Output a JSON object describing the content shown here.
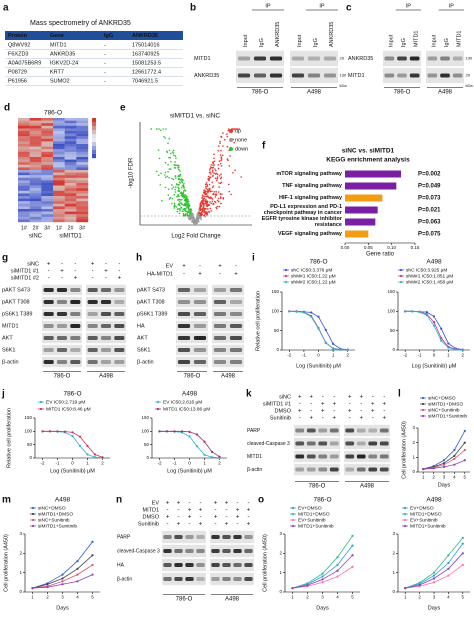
{
  "panel_labels": [
    "a",
    "b",
    "c",
    "d",
    "e",
    "f",
    "g",
    "h",
    "i",
    "j",
    "k",
    "l",
    "m",
    "n",
    "o"
  ],
  "a": {
    "title": "Mass spectrometry of ANKRD35",
    "header": [
      "Protein",
      "Gene",
      "IgG",
      "ANKRD35"
    ],
    "rows": [
      [
        "Q8WV92",
        "MITD1",
        "-",
        "175014016"
      ],
      [
        "F6XZD3",
        "ANKRD35",
        "-",
        "163740925"
      ],
      [
        "A0A075B6R9",
        "IGKV2D-24",
        "-",
        "15081253.5"
      ],
      [
        "P08729",
        "KRT7",
        "-",
        "12661772.4"
      ],
      [
        "P61956",
        "SUMO2",
        "-",
        "7046921.5"
      ]
    ]
  },
  "b": {
    "ip": "IP",
    "lanes": [
      [
        "Input",
        "IgG",
        "ANKRD35"
      ],
      [
        "Input",
        "IgG",
        "ANKRD35"
      ]
    ],
    "rows": [
      "MITD1",
      "ANKRD35"
    ],
    "markers": [
      "29",
      "130"
    ],
    "marker_unit": "kDa",
    "cell_lines": [
      "786-O",
      "A498"
    ]
  },
  "c": {
    "ip": "IP",
    "lanes": [
      [
        "Input",
        "IgG",
        "MITD1"
      ],
      [
        "Input",
        "IgG",
        "MITD1"
      ]
    ],
    "rows": [
      "ANKRD35",
      "MITD1"
    ],
    "markers": [
      "130",
      "29"
    ],
    "marker_unit": "kDa",
    "cell_lines": [
      "786-O",
      "A498"
    ]
  },
  "d": {
    "title": "786-O",
    "replicates": [
      "1#",
      "2#",
      "3#"
    ],
    "groups": [
      "siNC",
      "siMITD1"
    ]
  },
  "e": {
    "title": "siMITD1 vs. siNC",
    "legend": [
      "up",
      "none",
      "down"
    ],
    "legend_colors": [
      "#e8302a",
      "#9a9a9a",
      "#2cc22c"
    ],
    "ylabel": "-log10 FDR",
    "xlabel": "Log2 Fold Change"
  },
  "g": {
    "treatments": [
      {
        "label": "siNC",
        "signs": [
          "+",
          "-",
          "-",
          "+",
          "-",
          "-"
        ]
      },
      {
        "label": "siMITD1 #1",
        "signs": [
          "-",
          "+",
          "-",
          "-",
          "+",
          "-"
        ]
      },
      {
        "label": "siMITD1 #2",
        "signs": [
          "-",
          "-",
          "+",
          "-",
          "-",
          "+"
        ]
      }
    ],
    "rows": [
      "pAKT S473",
      "pAKT T308",
      "pS6K1 T389",
      "MITD1",
      "AKT",
      "S6K1",
      "β-actin"
    ],
    "cell_lines": [
      "786-O",
      "A498"
    ]
  },
  "h": {
    "treatments": [
      {
        "label": "EV",
        "signs": [
          "+",
          "-",
          "+",
          "-"
        ]
      },
      {
        "label": "HA-MITD1",
        "signs": [
          "-",
          "+",
          "-",
          "+"
        ]
      }
    ],
    "rows": [
      "pAKT S473",
      "pAKT T308",
      "pS6K1 T389",
      "HA",
      "AKT",
      "S6K1",
      "β-actin"
    ],
    "cell_lines": [
      "786-O",
      "A498"
    ]
  },
  "k": {
    "treatments": [
      {
        "label": "siNC",
        "signs": [
          "+",
          "+",
          "-",
          "-",
          "+",
          "+",
          "-",
          "-"
        ]
      },
      {
        "label": "siMITD1 #1",
        "signs": [
          "-",
          "-",
          "+",
          "+",
          "-",
          "-",
          "+",
          "+"
        ]
      },
      {
        "label": "DMSO",
        "signs": [
          "+",
          "-",
          "+",
          "-",
          "+",
          "-",
          "+",
          "-"
        ]
      },
      {
        "label": "Sunitinib",
        "signs": [
          "-",
          "+",
          "-",
          "+",
          "-",
          "+",
          "-",
          "+"
        ]
      }
    ],
    "rows": [
      "PARP",
      "cleaved-Caspase 3",
      "MITD1",
      "β-actin"
    ],
    "cell_lines": [
      "786-O",
      "A498"
    ]
  },
  "n": {
    "treatments": [
      {
        "label": "EV",
        "signs": [
          "+",
          "+",
          "-",
          "-",
          "+",
          "+",
          "-",
          "-"
        ]
      },
      {
        "label": "MITD1",
        "signs": [
          "-",
          "-",
          "+",
          "+",
          "-",
          "-",
          "+",
          "+"
        ]
      },
      {
        "label": "DMSO",
        "signs": [
          "+",
          "-",
          "+",
          "-",
          "+",
          "-",
          "+",
          "-"
        ]
      },
      {
        "label": "Sunitinib",
        "signs": [
          "-",
          "+",
          "-",
          "+",
          "-",
          "+",
          "-",
          "+"
        ]
      }
    ],
    "rows": [
      "PARP",
      "cleaved-Caspase 3",
      "HA",
      "β-actin"
    ],
    "cell_lines": [
      "786-O",
      "A498"
    ]
  },
  "chart_data": [
    {
      "type": "barh",
      "title": "siNC vs. siMITD1",
      "subtitle": "KEGG enrichment analysis",
      "categories": [
        "mTOR signaling pathway",
        "TNF signaling pathway",
        "HIF-1 signaling pathway",
        "PD-L1 expression and PD-1 checkpoint pathway in cancer",
        "EGFR tyrosine kinase inhibitor resistance",
        "VEGF signaling pathway"
      ],
      "values": [
        0.12,
        0.11,
        0.08,
        0.07,
        0.065,
        0.05
      ],
      "colors": [
        "#7b1fa2",
        "#7b1fa2",
        "#f39c12",
        "#7b1fa2",
        "#7b1fa2",
        "#f39c12"
      ],
      "annotations": [
        "P=0.002",
        "P=0.049",
        "P=0.073",
        "P=0.021",
        "P=0.063",
        "P=0.075"
      ],
      "xlim": [
        0,
        0.15
      ],
      "xticks": [
        {
          "value": 0,
          "label": "0.00"
        },
        {
          "value": 0.05,
          "label": "0.05"
        },
        {
          "value": 0.1,
          "label": "0.10"
        },
        {
          "value": 0.15,
          "label": "0.15"
        }
      ],
      "xlabel": "Gene ratio"
    },
    {
      "type": "line",
      "title": "786-O",
      "ylabel": "Relative cell proliferation",
      "xlabel": "Log (Sunitinib)  μM",
      "x": [
        -2,
        -1.5,
        -1,
        -0.5,
        0,
        0.5,
        1,
        1.5,
        2
      ],
      "xlim": [
        -2.5,
        2.5
      ],
      "xticks": [
        -2,
        -1,
        0,
        1,
        2
      ],
      "ylim": [
        0,
        150
      ],
      "yticks": [
        0,
        50,
        100,
        150
      ],
      "series": [
        {
          "name": "shC IC50:3.376 μM",
          "color": "#3f51d6",
          "values": [
            100,
            100,
            99,
            97,
            86,
            52,
            16,
            3,
            1
          ]
        },
        {
          "name": "shM#1 IC50:1.22 μM",
          "color": "#c2338f",
          "values": [
            100,
            100,
            98,
            88,
            57,
            19,
            4,
            1,
            0
          ]
        },
        {
          "name": "shM#2 IC50:1.22 μM",
          "color": "#2bb5c9",
          "values": [
            100,
            99,
            97,
            86,
            55,
            18,
            4,
            1,
            0
          ]
        }
      ]
    },
    {
      "type": "line",
      "title": "A498",
      "xlabel": "Log (Sunitinib)  μM",
      "x": [
        -2,
        -1.5,
        -1,
        -0.5,
        0,
        0.5,
        1,
        1.5,
        2
      ],
      "xlim": [
        -2.5,
        2.5
      ],
      "xticks": [
        -2,
        -1,
        0,
        1,
        2
      ],
      "ylim": [
        0,
        150
      ],
      "yticks": [
        0,
        50,
        100,
        150
      ],
      "series": [
        {
          "name": "shC IC50:3.925 μM",
          "color": "#3f51d6",
          "values": [
            100,
            100,
            99,
            98,
            87,
            55,
            17,
            4,
            1
          ]
        },
        {
          "name": "shM#1 IC50:1.851 μM",
          "color": "#c2338f",
          "values": [
            100,
            100,
            99,
            93,
            72,
            31,
            8,
            2,
            0
          ]
        },
        {
          "name": "shM#2 IC50:1.458 μM",
          "color": "#2bb5c9",
          "values": [
            100,
            100,
            98,
            90,
            63,
            24,
            6,
            1,
            0
          ]
        }
      ]
    },
    {
      "type": "line",
      "title": "786-O",
      "ylabel": "Relative cell proliferation",
      "xlabel": "Log (Sunitinib)  μM",
      "x": [
        -2,
        -1.5,
        -1,
        -0.5,
        0,
        0.5,
        1,
        1.5,
        2
      ],
      "xlim": [
        -2.5,
        2.5
      ],
      "xticks": [
        -2,
        -1,
        0,
        1,
        2
      ],
      "ylim": [
        0,
        150
      ],
      "yticks": [
        0,
        50,
        100,
        150
      ],
      "series": [
        {
          "name": "EV IC50:2.719 μM",
          "color": "#2ab0e0",
          "values": [
            100,
            100,
            99,
            96,
            82,
            45,
            13,
            3,
            1
          ]
        },
        {
          "name": "MITD1 IC50:8.46 μM",
          "color": "#d0305a",
          "values": [
            100,
            100,
            100,
            99,
            96,
            80,
            45,
            13,
            3
          ]
        }
      ]
    },
    {
      "type": "line",
      "title": "A498",
      "xlabel": "Log (Sunitinib)  μM",
      "x": [
        -2,
        -1.5,
        -1,
        -0.5,
        0,
        0.5,
        1,
        1.5,
        2
      ],
      "xlim": [
        -2.5,
        2.5
      ],
      "xticks": [
        -2,
        -1,
        0,
        1,
        2
      ],
      "ylim": [
        0,
        150
      ],
      "yticks": [
        0,
        50,
        100,
        150
      ],
      "series": [
        {
          "name": "EV IC50:2.616 μM",
          "color": "#2ab0e0",
          "values": [
            100,
            100,
            99,
            96,
            81,
            44,
            12,
            3,
            1
          ]
        },
        {
          "name": "MITD1 IC50:13.86 μM",
          "color": "#a02c7c",
          "values": [
            100,
            100,
            100,
            100,
            98,
            88,
            61,
            23,
            5
          ]
        }
      ]
    },
    {
      "type": "line",
      "ylabel": "Cell proliferation (A450)",
      "xlabel": "Days",
      "x": [
        1,
        2,
        3,
        4,
        5
      ],
      "xlim": [
        0.5,
        5.5
      ],
      "xticks": [
        1,
        2,
        3,
        4,
        5
      ],
      "ylim": [
        0,
        3
      ],
      "yticks": [
        0,
        1,
        2,
        3
      ],
      "series": [
        {
          "name": "siNC+DMSO",
          "color": "#3060d0",
          "values": [
            0.2,
            0.4,
            0.8,
            1.5,
            2.8
          ]
        },
        {
          "name": "siMITD1+DMSO",
          "color": "#444444",
          "values": [
            0.2,
            0.35,
            0.6,
            1.1,
            2.0
          ]
        },
        {
          "name": "siNC+Sunitinib",
          "color": "#e05070",
          "values": [
            0.2,
            0.3,
            0.5,
            0.9,
            1.5
          ]
        },
        {
          "name": "siMITD1+Sunitinib",
          "color": "#9040c0",
          "values": [
            0.2,
            0.25,
            0.35,
            0.5,
            0.8
          ]
        }
      ]
    },
    {
      "type": "line",
      "title": "A498",
      "ylabel": "Cell proliferation (A450)",
      "xlabel": "Days",
      "x": [
        1,
        2,
        3,
        4,
        5
      ],
      "xlim": [
        0.5,
        5.5
      ],
      "xticks": [
        1,
        2,
        3,
        4,
        5
      ],
      "ylim": [
        0,
        3
      ],
      "yticks": [
        0,
        1,
        2,
        3
      ],
      "series": [
        {
          "name": "siNC+DMSO",
          "color": "#3060d0",
          "values": [
            0.2,
            0.45,
            0.9,
            1.6,
            2.6
          ]
        },
        {
          "name": "siMITD1+DMSO",
          "color": "#444444",
          "values": [
            0.2,
            0.4,
            0.7,
            1.2,
            1.9
          ]
        },
        {
          "name": "siNC+Sunitinib",
          "color": "#e05070",
          "values": [
            0.2,
            0.3,
            0.55,
            0.9,
            1.4
          ]
        },
        {
          "name": "siMITD1+Sunitinib",
          "color": "#9040c0",
          "values": [
            0.2,
            0.25,
            0.4,
            0.55,
            0.9
          ]
        }
      ]
    },
    {
      "type": "line",
      "title": "786-O",
      "ylabel": "Cell proliferation (A450)",
      "xlabel": "Days",
      "x": [
        1,
        2,
        3,
        4,
        5
      ],
      "xlim": [
        0.5,
        5.5
      ],
      "xticks": [
        1,
        2,
        3,
        4,
        5
      ],
      "ylim": [
        0,
        3
      ],
      "yticks": [
        0,
        1,
        2,
        3
      ],
      "series": [
        {
          "name": "EV+DMSO",
          "color": "#2aa0e0",
          "values": [
            0.2,
            0.4,
            0.8,
            1.4,
            2.4
          ]
        },
        {
          "name": "MITD1+DMSO",
          "color": "#30b890",
          "values": [
            0.2,
            0.45,
            0.95,
            1.8,
            2.9
          ]
        },
        {
          "name": "EV+Sunitinib",
          "color": "#ff6fb0",
          "values": [
            0.2,
            0.3,
            0.5,
            0.8,
            1.3
          ]
        },
        {
          "name": "MITD1+Sunitinib",
          "color": "#8a3fc0",
          "values": [
            0.2,
            0.35,
            0.65,
            1.1,
            1.9
          ]
        }
      ]
    },
    {
      "type": "line",
      "title": "A498",
      "xlabel": "Days",
      "x": [
        1,
        2,
        3,
        4,
        5
      ],
      "xlim": [
        0.5,
        5.5
      ],
      "xticks": [
        1,
        2,
        3,
        4,
        5
      ],
      "ylim": [
        0,
        3
      ],
      "yticks": [
        0,
        1,
        2,
        3
      ],
      "series": [
        {
          "name": "EV+DMSO",
          "color": "#2aa0e0",
          "values": [
            0.2,
            0.42,
            0.85,
            1.5,
            2.5
          ]
        },
        {
          "name": "MITD1+DMSO",
          "color": "#30b890",
          "values": [
            0.2,
            0.48,
            1.0,
            1.9,
            2.8
          ]
        },
        {
          "name": "EV+Sunitinib",
          "color": "#ff6fb0",
          "values": [
            0.2,
            0.3,
            0.5,
            0.85,
            1.4
          ]
        },
        {
          "name": "MITD1+Sunitinib",
          "color": "#8a3fc0",
          "values": [
            0.2,
            0.36,
            0.7,
            1.2,
            2.0
          ]
        }
      ]
    }
  ]
}
